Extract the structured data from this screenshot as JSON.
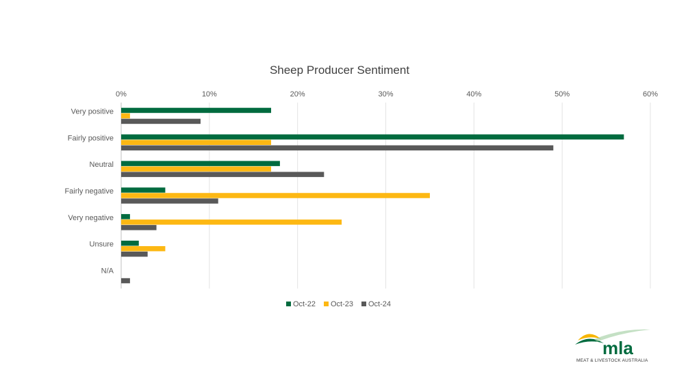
{
  "chart_data": {
    "type": "bar",
    "orientation": "horizontal",
    "title": "Sheep Producer Sentiment",
    "categories": [
      "Very positive",
      "Fairly positive",
      "Neutral",
      "Fairly negative",
      "Very negative",
      "Unsure",
      "N/A"
    ],
    "series": [
      {
        "name": "Oct-22",
        "color": "#006B3F",
        "values": [
          17,
          57,
          18,
          5,
          1,
          2,
          0
        ]
      },
      {
        "name": "Oct-23",
        "color": "#FDB813",
        "values": [
          1,
          17,
          17,
          35,
          25,
          5,
          0
        ]
      },
      {
        "name": "Oct-24",
        "color": "#595959",
        "values": [
          9,
          49,
          23,
          11,
          4,
          3,
          1
        ]
      }
    ],
    "xlim": [
      0,
      60
    ],
    "xticks": [
      "0%",
      "10%",
      "20%",
      "30%",
      "40%",
      "50%",
      "60%"
    ],
    "axis_position": "top",
    "grid": true,
    "legend_position": "bottom"
  },
  "logo": {
    "wordmark": "mla",
    "subtitle": "MEAT & LIVESTOCK AUSTRALIA",
    "colors": {
      "green": "#006B3F",
      "yellow": "#F7B500"
    }
  }
}
